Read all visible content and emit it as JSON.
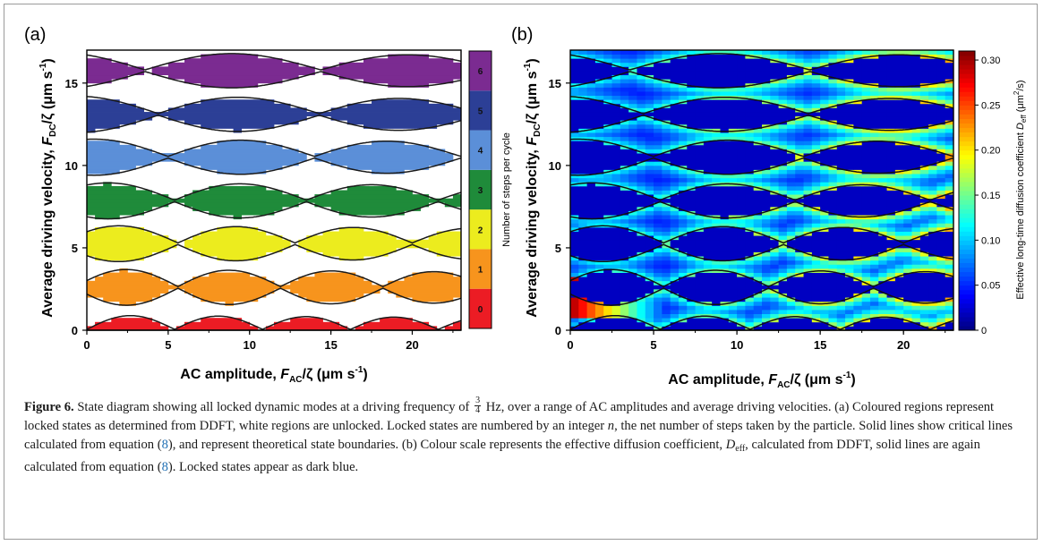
{
  "panels": [
    {
      "label": "(a)",
      "xlabel": {
        "prefix": "AC amplitude, ",
        "var": "F",
        "sub": "AC",
        "suffix": "/ζ (μm s",
        "sup": "-1",
        "close": ")"
      },
      "ylabel": {
        "prefix": "Average driving velocity, ",
        "var": "F",
        "sub": "DC",
        "suffix": "/ζ (μm s",
        "sup": "-1",
        "close": ")"
      },
      "xticks": [
        "0",
        "5",
        "10",
        "15",
        "20"
      ],
      "yticks": [
        "0",
        "5",
        "10",
        "15"
      ],
      "colorbar_title": "Number of steps per cycle",
      "colorbar_ticks": [
        "0",
        "1",
        "2",
        "3",
        "4",
        "5",
        "6"
      ]
    },
    {
      "label": "(b)",
      "xlabel": {
        "prefix": "AC amplitude, ",
        "var": "F",
        "sub": "AC",
        "suffix": "/ζ (μm s",
        "sup": "-1",
        "close": ")"
      },
      "ylabel": {
        "prefix": "Average driving velocity, ",
        "var": "F",
        "sub": "DC",
        "suffix": "/ζ (μm s",
        "sup": "-1",
        "close": ")"
      },
      "xticks": [
        "0",
        "5",
        "10",
        "15",
        "20"
      ],
      "yticks": [
        "0",
        "5",
        "10",
        "15"
      ],
      "colorbar_title": {
        "prefix": "Effective long-time diffusion coefficient ",
        "var": "D",
        "sub": "eff",
        "suffix": " (μm",
        "sup": "2",
        "close": "/s)"
      },
      "colorbar_ticks": [
        "0",
        "0.05",
        "0.10",
        "0.15",
        "0.20",
        "0.25",
        "0.30"
      ]
    }
  ],
  "chart_data": [
    {
      "type": "heatmap",
      "x_range": [
        0,
        23
      ],
      "y_range": [
        0,
        17
      ],
      "state_colors": [
        "#ec1c24",
        "#f7941d",
        "#ecec1e",
        "#1f8b3a",
        "#5b8fd8",
        "#2c3f96",
        "#7b2b91"
      ],
      "bands": [
        {
          "n": 0,
          "y": 0.0
        },
        {
          "n": 1,
          "y": 2.6
        },
        {
          "n": 2,
          "y": 5.25
        },
        {
          "n": 3,
          "y": 7.85
        },
        {
          "n": 4,
          "y": 10.5
        },
        {
          "n": 5,
          "y": 13.1
        },
        {
          "n": 6,
          "y": 15.75
        }
      ]
    },
    {
      "type": "heatmap",
      "x_range": [
        0,
        23
      ],
      "y_range": [
        0,
        17
      ],
      "colorbar_range": [
        0,
        0.31
      ],
      "locked_value": 0.02,
      "unlocked_peak": 0.2,
      "hotspot_peak": 0.3
    }
  ],
  "caption": {
    "figure_label": "Figure 6.",
    "t1": " State diagram showing all locked dynamic modes at a driving frequency of ",
    "frac_num": "3",
    "frac_den": "4",
    "t2": " Hz, over a range of AC amplitudes and average driving velocities. (a) Coloured regions represent locked states as determined from DDFT, white regions are unlocked. Locked states are numbered by an integer ",
    "n": "n",
    "t3": ", the net number of steps taken by the particle. Solid lines show critical lines calculated from equation (",
    "ref1": "8",
    "t4": "), and represent theoretical state boundaries. (b) Colour scale represents the effective diffusion coefficient, ",
    "d": "D",
    "d_sub": "eff",
    "t5": ", calculated from DDFT, solid lines are again calculated from equation (",
    "ref2": "8",
    "t6": "). Locked states appear as dark blue."
  }
}
